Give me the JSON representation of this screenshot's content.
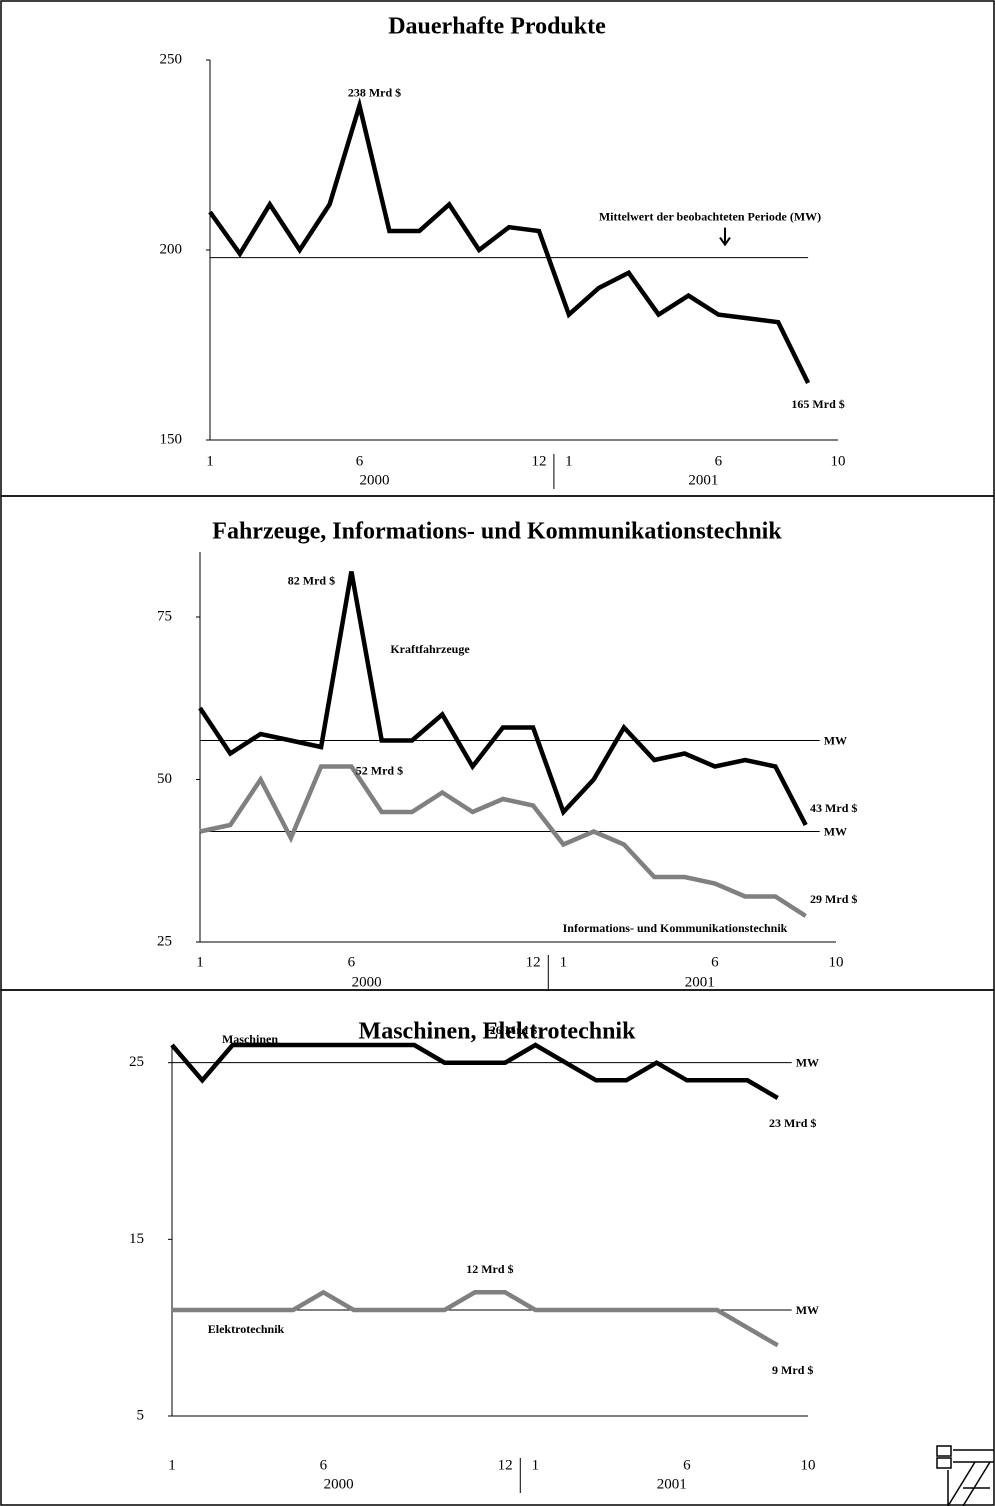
{
  "chart_data": [
    {
      "type": "line",
      "title": "Dauerhafte Produkte",
      "categories": [
        "1",
        null,
        null,
        null,
        null,
        "6",
        null,
        null,
        null,
        null,
        null,
        "12",
        "1",
        null,
        null,
        null,
        null,
        "6",
        null,
        null,
        null,
        "10"
      ],
      "years": [
        "2000",
        "2001"
      ],
      "ylim": [
        150,
        250
      ],
      "yticks": [
        150,
        200,
        250
      ],
      "series": [
        {
          "color": "#000000",
          "values": [
            210,
            199,
            212,
            200,
            212,
            238,
            205,
            205,
            212,
            200,
            206,
            205,
            183,
            190,
            194,
            183,
            188,
            183,
            182,
            181,
            165,
            null
          ],
          "value_labels": [
            null,
            null,
            null,
            null,
            null,
            "238 Mrd $",
            null,
            null,
            null,
            null,
            null,
            null,
            null,
            null,
            null,
            null,
            null,
            null,
            null,
            null,
            "165 Mrd $",
            null
          ],
          "mean": 198,
          "mean_label": "Mittelwert der beobachteten Periode (MW)"
        }
      ]
    },
    {
      "type": "line",
      "title": "Fahrzeuge, Informations- und Kommunikationstechnik",
      "categories": [
        "1",
        null,
        null,
        null,
        null,
        "6",
        null,
        null,
        null,
        null,
        null,
        "12",
        "1",
        null,
        null,
        null,
        null,
        "6",
        null,
        null,
        null,
        "10"
      ],
      "years": [
        "2000",
        "2001"
      ],
      "ylim": [
        25,
        85
      ],
      "yticks": [
        25,
        50,
        75
      ],
      "series": [
        {
          "name": "Kraftfahrzeuge",
          "color": "#000000",
          "values": [
            61,
            54,
            57,
            56,
            55,
            82,
            56,
            56,
            60,
            52,
            58,
            58,
            45,
            50,
            58,
            53,
            54,
            52,
            53,
            52,
            43,
            null
          ],
          "value_labels": [
            null,
            null,
            null,
            null,
            null,
            "82 Mrd $",
            null,
            null,
            null,
            null,
            null,
            null,
            null,
            null,
            null,
            null,
            null,
            null,
            null,
            null,
            "43 Mrd $",
            null
          ],
          "mean": 56,
          "mean_label": "MW"
        },
        {
          "name": "Informations- und Kommunikationstechnik",
          "color": "#808080",
          "values": [
            42,
            43,
            50,
            41,
            52,
            52,
            45,
            45,
            48,
            45,
            47,
            46,
            40,
            42,
            40,
            35,
            35,
            34,
            32,
            32,
            29,
            null
          ],
          "value_labels": [
            null,
            null,
            null,
            null,
            null,
            "52 Mrd $",
            null,
            null,
            null,
            null,
            null,
            null,
            null,
            null,
            null,
            null,
            null,
            null,
            null,
            null,
            "29 Mrd $",
            null
          ],
          "mean": 42,
          "mean_label": "MW"
        }
      ]
    },
    {
      "type": "line",
      "title": "Maschinen, Elektrotechnik",
      "categories": [
        "1",
        null,
        null,
        null,
        null,
        "6",
        null,
        null,
        null,
        null,
        null,
        "12",
        "1",
        null,
        null,
        null,
        null,
        "6",
        null,
        null,
        null,
        "10"
      ],
      "years": [
        "2000",
        "2001"
      ],
      "ylim": [
        5,
        26
      ],
      "yticks": [
        5,
        15,
        25
      ],
      "series": [
        {
          "name": "Maschinen",
          "color": "#000000",
          "values": [
            26,
            24,
            26,
            26,
            26,
            26,
            26,
            26,
            26,
            25,
            25,
            25,
            26,
            25,
            24,
            24,
            25,
            24,
            24,
            24,
            23,
            null
          ],
          "value_labels": [
            null,
            null,
            null,
            null,
            null,
            null,
            null,
            null,
            null,
            null,
            null,
            null,
            "26 Mrd $",
            null,
            null,
            null,
            null,
            null,
            null,
            null,
            "23 Mrd $",
            null
          ],
          "mean": 25,
          "mean_label": "MW"
        },
        {
          "name": "Elektrotechnik",
          "color": "#808080",
          "values": [
            11,
            11,
            11,
            11,
            11,
            12,
            11,
            11,
            11,
            11,
            12,
            12,
            11,
            11,
            11,
            11,
            11,
            11,
            11,
            10,
            9,
            null
          ],
          "value_labels": [
            null,
            null,
            null,
            null,
            null,
            null,
            null,
            null,
            null,
            null,
            "12 Mrd $",
            null,
            null,
            null,
            null,
            null,
            null,
            null,
            null,
            null,
            "9 Mrd $",
            null
          ],
          "mean": 11,
          "mean_label": "MW"
        }
      ]
    }
  ]
}
